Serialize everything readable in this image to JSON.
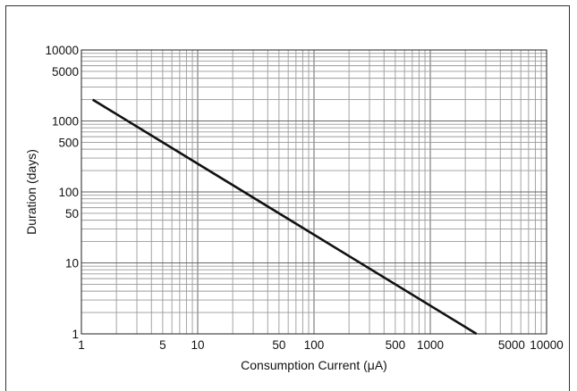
{
  "chart_data": {
    "type": "line",
    "xlabel": "Consumption Current (μA)",
    "ylabel": "Duration (days)",
    "x_scale": "log",
    "y_scale": "log",
    "xlim": [
      1,
      10000
    ],
    "ylim": [
      1,
      10000
    ],
    "x_ticks": [
      1,
      5,
      10,
      50,
      100,
      500,
      1000,
      5000,
      10000
    ],
    "x_tick_labels": [
      "1",
      "5",
      "10",
      "50",
      "100",
      "500",
      "1000",
      "5000",
      "10000"
    ],
    "y_ticks": [
      1,
      10,
      50,
      100,
      500,
      1000,
      5000,
      10000
    ],
    "y_tick_labels": [
      "1",
      "10",
      "50",
      "100",
      "500",
      "1000",
      "5000",
      "10000"
    ],
    "grid": true,
    "line_color": "#111111",
    "grid_color": "#9a9a9a",
    "series": [
      {
        "x": [
          1.25,
          2500
        ],
        "y": [
          2000,
          1
        ]
      }
    ]
  }
}
